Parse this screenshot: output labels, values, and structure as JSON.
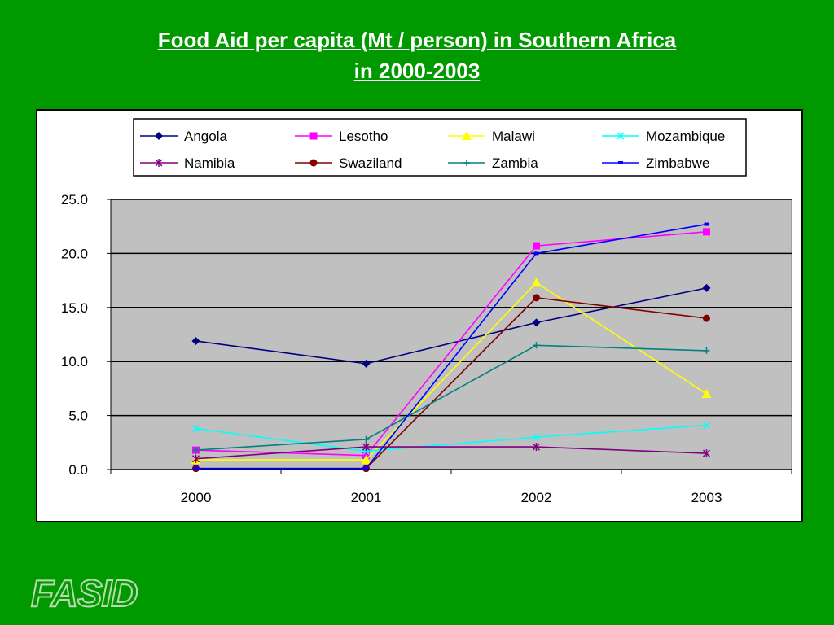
{
  "slide": {
    "title_line1": "Food Aid per capita (Mt / person) in Southern Africa",
    "title_line2": "in 2000-2003",
    "watermark": "FASID"
  },
  "colors": {
    "background": "#009900",
    "plot_area": "#C0C0C0"
  },
  "chart_data": {
    "type": "line",
    "title": "Food Aid per capita (Mt / person) in Southern Africa in 2000-2003",
    "xlabel": "",
    "ylabel": "",
    "categories": [
      "2000",
      "2001",
      "2002",
      "2003"
    ],
    "ylim": [
      0,
      25
    ],
    "yticks": [
      "0.0",
      "5.0",
      "10.0",
      "15.0",
      "20.0",
      "25.0"
    ],
    "ytick_values": [
      0,
      5,
      10,
      15,
      20,
      25
    ],
    "grid": true,
    "legend_position": "top",
    "series": [
      {
        "name": "Angola",
        "values": [
          11.9,
          9.8,
          13.6,
          16.8
        ],
        "color": "#000080",
        "marker": "diamond"
      },
      {
        "name": "Lesotho",
        "values": [
          1.8,
          1.3,
          20.7,
          22.0
        ],
        "color": "#FF00FF",
        "marker": "square"
      },
      {
        "name": "Malawi",
        "values": [
          0.9,
          0.9,
          17.3,
          7.0
        ],
        "color": "#FFFF00",
        "marker": "triangle"
      },
      {
        "name": "Mozambique",
        "values": [
          3.8,
          1.7,
          3.0,
          4.1
        ],
        "color": "#00FFFF",
        "marker": "x"
      },
      {
        "name": "Namibia",
        "values": [
          1.0,
          2.1,
          2.1,
          1.5
        ],
        "color": "#800080",
        "marker": "star"
      },
      {
        "name": "Swaziland",
        "values": [
          0.1,
          0.1,
          15.9,
          14.0
        ],
        "color": "#800000",
        "marker": "circle"
      },
      {
        "name": "Zambia",
        "values": [
          1.8,
          2.8,
          11.5,
          11.0
        ],
        "color": "#008080",
        "marker": "plus"
      },
      {
        "name": "Zimbabwe",
        "values": [
          0.1,
          0.1,
          20.0,
          22.7
        ],
        "color": "#0000FF",
        "marker": "dash"
      }
    ]
  }
}
